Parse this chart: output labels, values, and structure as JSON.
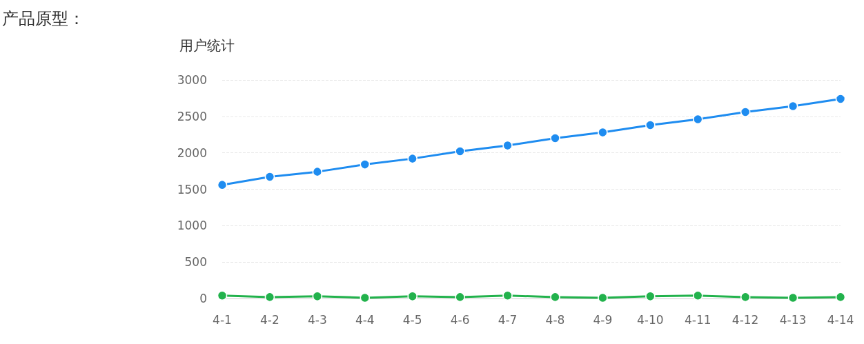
{
  "chart_data": {
    "type": "line",
    "title": "产品原型：",
    "ylabel": "用户统计",
    "categories": [
      "4-1",
      "4-2",
      "4-3",
      "4-4",
      "4-5",
      "4-6",
      "4-7",
      "4-8",
      "4-9",
      "4-10",
      "4-11",
      "4-12",
      "4-13",
      "4-14"
    ],
    "series": [
      {
        "color": "#1e8cf0",
        "values": [
          1560,
          1670,
          1740,
          1840,
          1920,
          2020,
          2100,
          2200,
          2280,
          2380,
          2460,
          2560,
          2640,
          2740
        ]
      },
      {
        "color": "#22b24c",
        "values": [
          40,
          20,
          30,
          10,
          30,
          20,
          40,
          20,
          10,
          30,
          40,
          20,
          10,
          20
        ]
      }
    ],
    "ylim": [
      0,
      3000
    ],
    "yticks": [
      0,
      500,
      1000,
      1500,
      2000,
      2500,
      3000
    ],
    "grid": "y",
    "marker": "circle",
    "line_style": "solid"
  }
}
